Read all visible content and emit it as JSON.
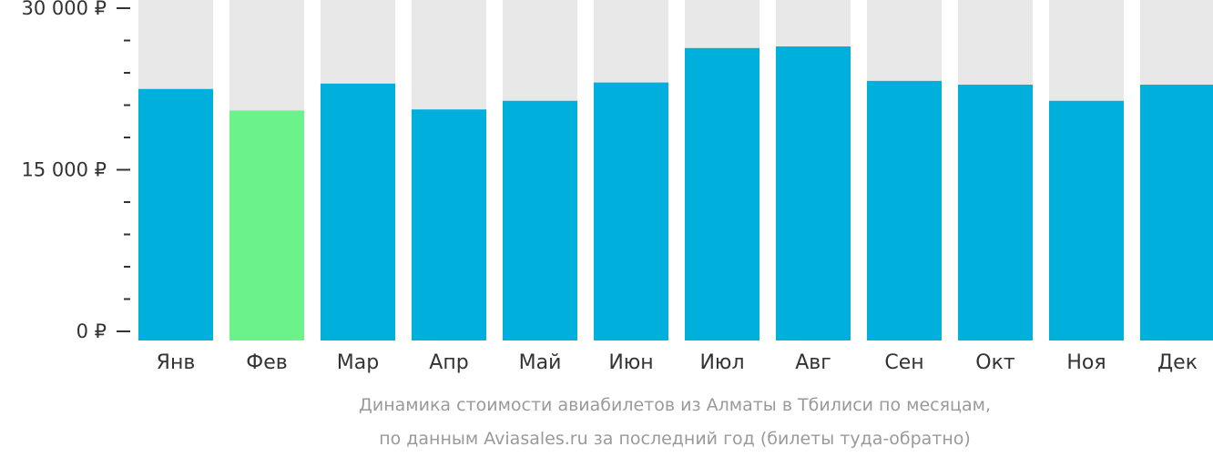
{
  "chart_data": {
    "type": "bar",
    "categories": [
      "Янв",
      "Фев",
      "Мар",
      "Апр",
      "Май",
      "Июн",
      "Июл",
      "Авг",
      "Сен",
      "Окт",
      "Ноя",
      "Дек"
    ],
    "values": [
      22500,
      20500,
      23000,
      20600,
      21400,
      23100,
      26300,
      26450,
      23250,
      22900,
      21400,
      22900
    ],
    "highlight_index": 1,
    "ylim": [
      0,
      30000
    ],
    "yticks": [
      {
        "value": 0,
        "label": "0 ₽"
      },
      {
        "value": 15000,
        "label": "15 000 ₽"
      },
      {
        "value": 30000,
        "label": "30 000 ₽"
      }
    ],
    "minor_tick_step": 3000,
    "title": "",
    "xlabel": "",
    "ylabel": "",
    "caption": [
      "Динамика стоимости авиабилетов из Алматы в Тбилиси по месяцам,",
      "по данным Aviasales.ru за последний год (билеты туда-обратно)"
    ],
    "colors": {
      "bar": "#00b0dc",
      "highlight": "#6cf28a",
      "track": "#e8e8e8"
    }
  }
}
